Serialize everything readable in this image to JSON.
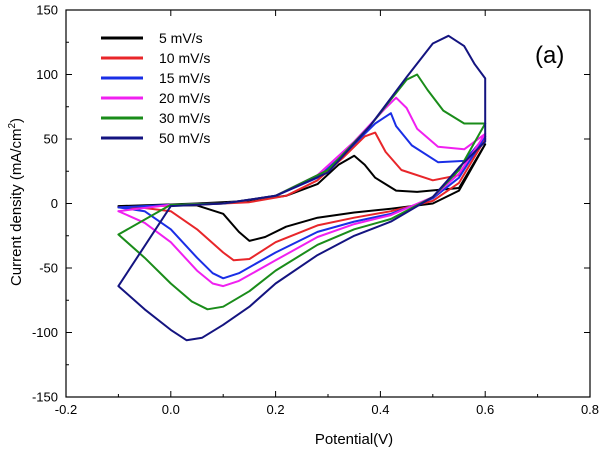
{
  "chart_data": {
    "type": "line",
    "panel_label": "(a)",
    "xlabel": "Potential(V)",
    "ylabel_main": "Current density (mA/cm",
    "ylabel_sup": "2",
    "ylabel_close": ")",
    "xlim": [
      -0.2,
      0.8
    ],
    "ylim": [
      -150,
      150
    ],
    "x_ticks": [
      -0.2,
      0.0,
      0.2,
      0.4,
      0.6,
      0.8
    ],
    "x_tick_labels": [
      "-0.2",
      "0.0",
      "0.2",
      "0.4",
      "0.6",
      "0.8"
    ],
    "y_ticks": [
      -150,
      -100,
      -50,
      0,
      50,
      100,
      150
    ],
    "y_tick_labels": [
      "-150",
      "-100",
      "-50",
      "0",
      "50",
      "100",
      "150"
    ],
    "grid": false,
    "legend_position": "top-left",
    "series": [
      {
        "name": "5 mV/s",
        "color": "#000000",
        "points": [
          [
            -0.1,
            -2
          ],
          [
            0.0,
            -1.5
          ],
          [
            0.05,
            -1.5
          ],
          [
            0.1,
            -8
          ],
          [
            0.13,
            -22
          ],
          [
            0.15,
            -29
          ],
          [
            0.18,
            -26
          ],
          [
            0.22,
            -18
          ],
          [
            0.28,
            -11
          ],
          [
            0.35,
            -7
          ],
          [
            0.42,
            -4
          ],
          [
            0.5,
            0
          ],
          [
            0.55,
            10
          ],
          [
            0.6,
            46
          ],
          [
            0.55,
            12
          ],
          [
            0.47,
            9
          ],
          [
            0.43,
            10
          ],
          [
            0.39,
            20
          ],
          [
            0.37,
            30
          ],
          [
            0.35,
            37
          ],
          [
            0.32,
            30
          ],
          [
            0.28,
            15
          ],
          [
            0.22,
            6
          ],
          [
            0.15,
            2
          ],
          [
            0.05,
            0
          ],
          [
            -0.1,
            -2
          ]
        ]
      },
      {
        "name": "10 mV/s",
        "color": "#e8262a",
        "points": [
          [
            -0.1,
            -3
          ],
          [
            -0.05,
            -3.5
          ],
          [
            0.0,
            -6
          ],
          [
            0.05,
            -20
          ],
          [
            0.1,
            -38
          ],
          [
            0.12,
            -44
          ],
          [
            0.15,
            -43
          ],
          [
            0.2,
            -30
          ],
          [
            0.28,
            -17
          ],
          [
            0.35,
            -11
          ],
          [
            0.42,
            -6
          ],
          [
            0.5,
            2
          ],
          [
            0.55,
            16
          ],
          [
            0.6,
            50
          ],
          [
            0.55,
            22
          ],
          [
            0.5,
            18
          ],
          [
            0.44,
            26
          ],
          [
            0.41,
            40
          ],
          [
            0.39,
            55
          ],
          [
            0.37,
            52
          ],
          [
            0.33,
            36
          ],
          [
            0.28,
            18
          ],
          [
            0.22,
            6
          ],
          [
            0.15,
            1
          ],
          [
            0.05,
            -1
          ],
          [
            -0.1,
            -3
          ]
        ]
      },
      {
        "name": "15 mV/s",
        "color": "#1a2ee6",
        "points": [
          [
            -0.1,
            -3
          ],
          [
            -0.05,
            -6
          ],
          [
            0.0,
            -20
          ],
          [
            0.05,
            -42
          ],
          [
            0.08,
            -54
          ],
          [
            0.1,
            -58
          ],
          [
            0.13,
            -54
          ],
          [
            0.2,
            -38
          ],
          [
            0.28,
            -22
          ],
          [
            0.35,
            -14
          ],
          [
            0.42,
            -8
          ],
          [
            0.5,
            4
          ],
          [
            0.55,
            20
          ],
          [
            0.6,
            52
          ],
          [
            0.56,
            33
          ],
          [
            0.51,
            32
          ],
          [
            0.46,
            45
          ],
          [
            0.43,
            60
          ],
          [
            0.42,
            70
          ],
          [
            0.39,
            62
          ],
          [
            0.34,
            42
          ],
          [
            0.28,
            20
          ],
          [
            0.2,
            6
          ],
          [
            0.1,
            0
          ],
          [
            0.0,
            -1
          ],
          [
            -0.1,
            -3
          ]
        ]
      },
      {
        "name": "20 mV/s",
        "color": "#f020f0",
        "points": [
          [
            -0.1,
            -6
          ],
          [
            -0.05,
            -15
          ],
          [
            0.0,
            -30
          ],
          [
            0.05,
            -52
          ],
          [
            0.08,
            -62
          ],
          [
            0.1,
            -64
          ],
          [
            0.13,
            -60
          ],
          [
            0.2,
            -44
          ],
          [
            0.28,
            -26
          ],
          [
            0.35,
            -16
          ],
          [
            0.42,
            -9
          ],
          [
            0.5,
            5
          ],
          [
            0.55,
            23
          ],
          [
            0.6,
            54
          ],
          [
            0.56,
            42
          ],
          [
            0.51,
            44
          ],
          [
            0.47,
            58
          ],
          [
            0.45,
            74
          ],
          [
            0.43,
            82
          ],
          [
            0.41,
            74
          ],
          [
            0.35,
            48
          ],
          [
            0.28,
            22
          ],
          [
            0.2,
            6
          ],
          [
            0.1,
            0
          ],
          [
            0.0,
            -1
          ],
          [
            -0.1,
            -6
          ]
        ]
      },
      {
        "name": "30 mV/s",
        "color": "#1a8c1a",
        "points": [
          [
            -0.1,
            -24
          ],
          [
            -0.05,
            -42
          ],
          [
            0.0,
            -62
          ],
          [
            0.04,
            -76
          ],
          [
            0.07,
            -82
          ],
          [
            0.1,
            -80
          ],
          [
            0.15,
            -68
          ],
          [
            0.2,
            -52
          ],
          [
            0.28,
            -32
          ],
          [
            0.35,
            -20
          ],
          [
            0.42,
            -12
          ],
          [
            0.5,
            5
          ],
          [
            0.55,
            26
          ],
          [
            0.6,
            62
          ],
          [
            0.56,
            62
          ],
          [
            0.52,
            72
          ],
          [
            0.49,
            88
          ],
          [
            0.47,
            100
          ],
          [
            0.45,
            96
          ],
          [
            0.38,
            60
          ],
          [
            0.3,
            26
          ],
          [
            0.2,
            6
          ],
          [
            0.1,
            0
          ],
          [
            0.0,
            -1
          ],
          [
            -0.1,
            -24
          ]
        ]
      },
      {
        "name": "50 mV/s",
        "color": "#141480",
        "points": [
          [
            -0.1,
            -64
          ],
          [
            -0.05,
            -82
          ],
          [
            0.0,
            -98
          ],
          [
            0.03,
            -106
          ],
          [
            0.06,
            -104
          ],
          [
            0.1,
            -94
          ],
          [
            0.15,
            -80
          ],
          [
            0.2,
            -62
          ],
          [
            0.28,
            -40
          ],
          [
            0.35,
            -25
          ],
          [
            0.42,
            -14
          ],
          [
            0.5,
            5
          ],
          [
            0.55,
            28
          ],
          [
            0.6,
            48
          ],
          [
            0.6,
            97
          ],
          [
            0.58,
            108
          ],
          [
            0.56,
            122
          ],
          [
            0.53,
            130
          ],
          [
            0.5,
            124
          ],
          [
            0.45,
            98
          ],
          [
            0.38,
            60
          ],
          [
            0.3,
            24
          ],
          [
            0.2,
            6
          ],
          [
            0.1,
            0
          ],
          [
            0.0,
            -2
          ],
          [
            -0.1,
            -64
          ]
        ]
      }
    ]
  }
}
